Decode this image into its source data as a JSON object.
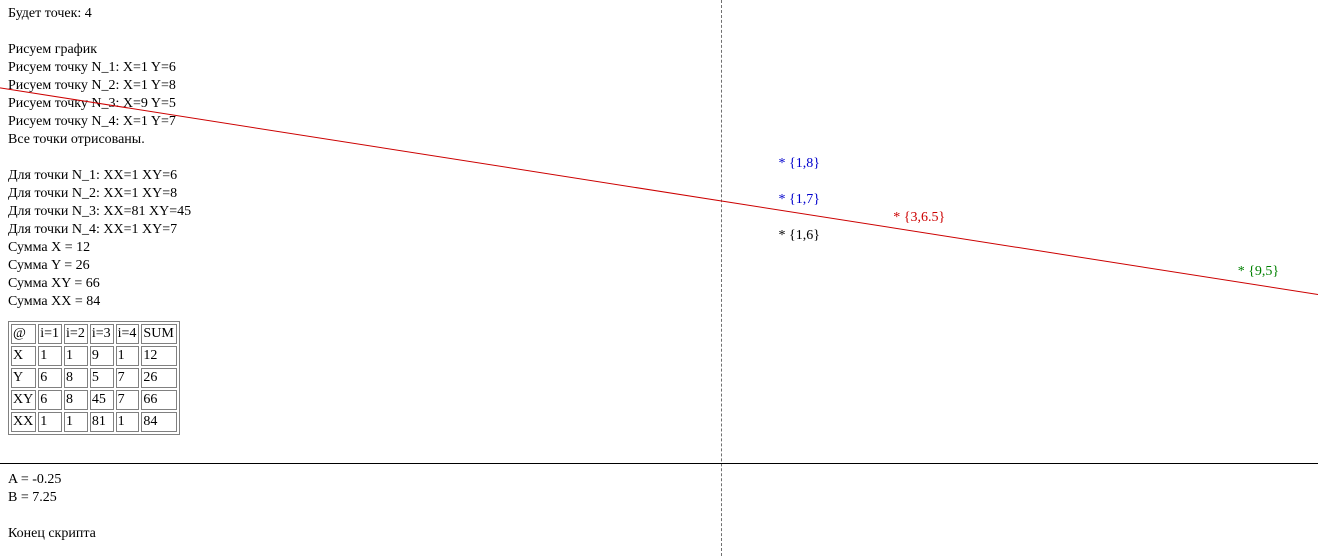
{
  "log": {
    "points_count": "Будет точек: 4",
    "drawing_graph": "Рисуем график",
    "draw_point_lines": [
      "Рисуем точку N_1: X=1 Y=6",
      "Рисуем точку N_2: X=1 Y=8",
      "Рисуем точку N_3: X=9 Y=5",
      "Рисуем точку N_4: X=1 Y=7"
    ],
    "all_drawn": "Все точки отрисованы.",
    "per_point_lines": [
      "Для точки N_1: XX=1 XY=6",
      "Для точки N_2: XX=1 XY=8",
      "Для точки N_3: XX=81 XY=45",
      "Для точки N_4: XX=1 XY=7"
    ],
    "sum_lines": [
      "Сумма X = 12",
      "Сумма Y = 26",
      "Сумма XY = 66",
      "Сумма XX = 84"
    ]
  },
  "table": {
    "header": [
      "@",
      "i=1",
      "i=2",
      "i=3",
      "i=4",
      "SUM"
    ],
    "rows": [
      [
        "X",
        "1",
        "1",
        "9",
        "1",
        "12"
      ],
      [
        "Y",
        "6",
        "8",
        "5",
        "7",
        "26"
      ],
      [
        "XY",
        "6",
        "8",
        "45",
        "7",
        "66"
      ],
      [
        "XX",
        "1",
        "1",
        "81",
        "1",
        "84"
      ]
    ]
  },
  "results": {
    "a_line": "A = -0.25",
    "b_line": "B = 7.25",
    "end_line": "Конец скрипта"
  },
  "plot": {
    "regression": {
      "a": -0.25,
      "b": 7.25,
      "color": "#cc0000"
    },
    "points": [
      {
        "text": "* {1,8}",
        "x": 1,
        "y": 8,
        "color": "#0000cc"
      },
      {
        "text": "* {1,7}",
        "x": 1,
        "y": 7,
        "color": "#0000cc"
      },
      {
        "text": "* {3,6.5}",
        "x": 3,
        "y": 6.5,
        "color": "#cc0000"
      },
      {
        "text": "* {1,6}",
        "x": 1,
        "y": 6,
        "color": "#000000"
      },
      {
        "text": "* {9,5}",
        "x": 9,
        "y": 5,
        "color": "#008000"
      }
    ]
  }
}
